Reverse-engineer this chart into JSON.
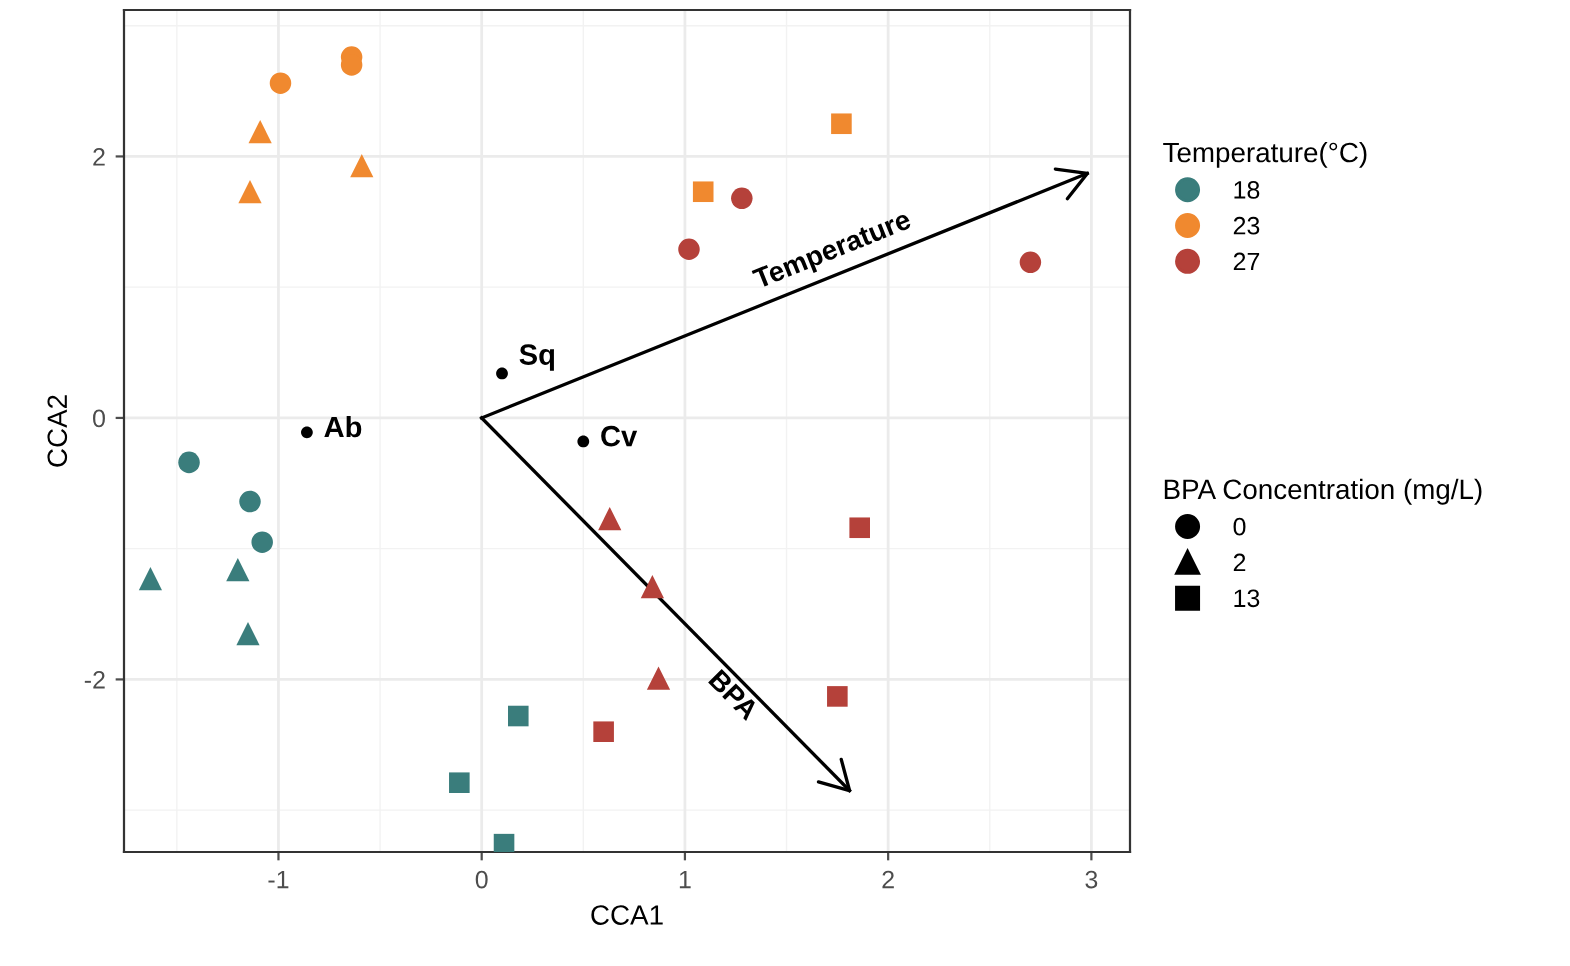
{
  "chart_data": {
    "type": "scatter",
    "xlabel": "CCA1",
    "ylabel": "CCA2",
    "xlim": [
      -1.76,
      3.19
    ],
    "ylim": [
      -3.32,
      3.12
    ],
    "xticks": [
      -1,
      0,
      1,
      2,
      3
    ],
    "yticks": [
      -2,
      0,
      2
    ],
    "grid": true,
    "legend": "right",
    "legend_title": [
      "Temperature(°C)",
      "BPA Concentration (mg/L)"
    ],
    "series": [
      {
        "name": "18",
        "color": "#3a7d7c",
        "x": [
          -1.44,
          -1.14,
          -1.08,
          -1.63,
          -1.2,
          -1.15,
          0.18,
          -0.11,
          0.11
        ],
        "values": [
          -0.34,
          -0.64,
          -0.95,
          -1.23,
          -1.16,
          -1.65,
          -2.28,
          -2.79,
          -3.26
        ],
        "marker": [
          "circle",
          "circle",
          "circle",
          "triangle",
          "triangle",
          "triangle",
          "square",
          "square",
          "square"
        ]
      },
      {
        "name": "23",
        "color": "#f0892f",
        "x": [
          -0.99,
          -0.64,
          -0.64,
          -1.09,
          -1.14,
          -0.59,
          1.77,
          1.09
        ],
        "values": [
          2.56,
          2.76,
          2.7,
          2.19,
          1.73,
          1.93,
          2.25,
          1.73
        ],
        "marker": [
          "circle",
          "circle",
          "circle",
          "triangle",
          "triangle",
          "triangle",
          "square",
          "square"
        ]
      },
      {
        "name": "27",
        "color": "#b5413a",
        "x": [
          1.28,
          1.02,
          2.7,
          0.63,
          0.84,
          0.87,
          1.86,
          1.75,
          0.6
        ],
        "values": [
          1.68,
          1.29,
          1.19,
          -0.77,
          -1.29,
          -1.99,
          -0.84,
          -2.13,
          -2.4
        ],
        "marker": [
          "circle",
          "circle",
          "circle",
          "triangle",
          "triangle",
          "triangle",
          "square",
          "square",
          "square"
        ]
      },
      {
        "name": "0",
        "marker": "circle"
      },
      {
        "name": "2",
        "marker": "triangle"
      },
      {
        "name": "13",
        "marker": "square"
      },
      {
        "color": "#000000",
        "x": [
          0.1,
          -0.86,
          0.5
        ],
        "values": [
          0.34,
          -0.11,
          -0.18
        ],
        "value_labels": [
          "Sq",
          "Ab",
          "Cv"
        ],
        "marker": "circle"
      },
      {
        "type": "line",
        "name": "Temperature",
        "color": "#000000",
        "x": [
          0,
          2.98
        ],
        "values": [
          0,
          1.87
        ]
      },
      {
        "type": "line",
        "name": "BPA",
        "color": "#000000",
        "x": [
          0,
          1.81
        ],
        "values": [
          0,
          -2.85
        ]
      }
    ]
  }
}
